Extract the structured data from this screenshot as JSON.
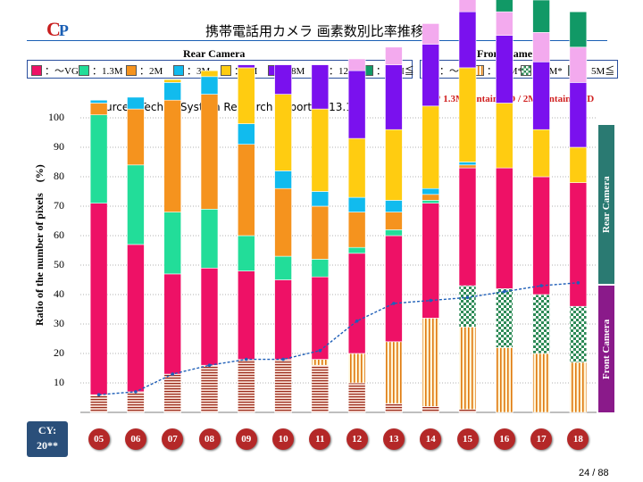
{
  "logo": {
    "c": "C",
    "p": "P"
  },
  "title": "携帯電話用カメラ 画素数別比率推移",
  "header_rear": "Rear Camera",
  "header_front": "Front Camera",
  "source": "Source：Techno System Research Report 2013.12",
  "note": "* 1.3M contain HD / 2M contain FHD",
  "side_rear": "Rear Camera",
  "side_front": "Front Camera",
  "cy_label": [
    "CY:",
    "20**"
  ],
  "page_number": "24 / 88",
  "rear_legend": [
    {
      "label": "：～VGA",
      "color": "#ee1166"
    },
    {
      "label": "：1.3M",
      "color": "#22dd99"
    },
    {
      "label": "：2M",
      "color": "#f5931e"
    },
    {
      "label": "：3M",
      "color": "#11bbee"
    },
    {
      "label": "：5M",
      "color": "#ffcc11"
    },
    {
      "label": "：8M",
      "color": "#7a11ee"
    },
    {
      "label": "：12~14M",
      "color": "#f3aaee"
    },
    {
      "label": "：16M≦",
      "color": "#119966"
    }
  ],
  "front_legend": [
    {
      "label": "：～VGA",
      "pattern": "hline"
    },
    {
      "label": "：1.3M*",
      "pattern": "vline"
    },
    {
      "label": "：2M*",
      "pattern": "check"
    },
    {
      "label": "：5M≦",
      "color": "#2a7a72"
    }
  ],
  "chart_data": {
    "type": "bar",
    "stacked": true,
    "ylabel": "Ratio of the number of pixels　(%)",
    "ylim": [
      0,
      100
    ],
    "yticks": [
      10,
      20,
      30,
      40,
      50,
      60,
      70,
      80,
      90,
      100
    ],
    "categories": [
      "05",
      "06",
      "07",
      "08",
      "09",
      "10",
      "11",
      "12",
      "13",
      "14",
      "15",
      "16",
      "17",
      "18"
    ],
    "rear_series": [
      {
        "name": "～VGA",
        "color": "#ee1166",
        "values": [
          65,
          50,
          34,
          33,
          30,
          27,
          28,
          34,
          36,
          39,
          40,
          41,
          40,
          42
        ]
      },
      {
        "name": "1.3M",
        "color": "#22dd99",
        "values": [
          30,
          27,
          21,
          20,
          12,
          8,
          6,
          2,
          2,
          1,
          0,
          0,
          0,
          0
        ]
      },
      {
        "name": "2M",
        "color": "#f5931e",
        "values": [
          4,
          19,
          38,
          39,
          31,
          23,
          18,
          12,
          6,
          2,
          1,
          0,
          0,
          0
        ]
      },
      {
        "name": "3M",
        "color": "#11bbee",
        "values": [
          1,
          4,
          6,
          6,
          7,
          6,
          5,
          5,
          4,
          2,
          1,
          0,
          0,
          0
        ]
      },
      {
        "name": "5M",
        "color": "#ffcc11",
        "values": [
          0,
          0,
          1,
          2,
          19,
          26,
          28,
          20,
          24,
          28,
          32,
          22,
          16,
          12
        ]
      },
      {
        "name": "8M",
        "color": "#7a11ee",
        "values": [
          0,
          0,
          0,
          0,
          1,
          10,
          15,
          23,
          22,
          21,
          19,
          23,
          23,
          22
        ]
      },
      {
        "name": "12~14M",
        "color": "#f3aaee",
        "values": [
          0,
          0,
          0,
          0,
          0,
          0,
          0,
          4,
          6,
          7,
          7,
          8,
          10,
          12
        ]
      },
      {
        "name": "16M≦",
        "color": "#119966",
        "values": [
          0,
          0,
          0,
          0,
          0,
          0,
          0,
          0,
          0,
          0,
          0,
          6,
          11,
          12
        ]
      }
    ],
    "front_series": [
      {
        "name": "～VGA",
        "pattern": "hline",
        "values": [
          6,
          7,
          13,
          16,
          18,
          18,
          16,
          10,
          3,
          2,
          1,
          0,
          0,
          0
        ]
      },
      {
        "name": "1.3M*",
        "pattern": "vline",
        "values": [
          0,
          0,
          0,
          0,
          0,
          0,
          2,
          10,
          21,
          30,
          28,
          22,
          20,
          17
        ]
      },
      {
        "name": "2M*",
        "pattern": "check",
        "values": [
          0,
          0,
          0,
          0,
          0,
          0,
          0,
          0,
          0,
          0,
          14,
          20,
          20,
          19
        ]
      },
      {
        "name": "5M≦",
        "color": "#2a7a72",
        "values": [
          0,
          0,
          0,
          0,
          0,
          0,
          0,
          0,
          0,
          0,
          0,
          0,
          0,
          0
        ]
      }
    ],
    "front_share_line": [
      6,
      7,
      13,
      16,
      18,
      18,
      21,
      31,
      37,
      38,
      39,
      41,
      43,
      44
    ]
  }
}
